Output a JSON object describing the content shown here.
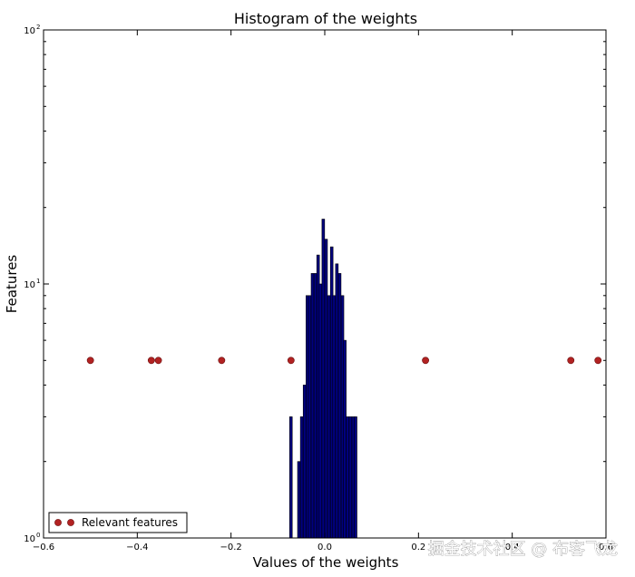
{
  "chart_data": {
    "type": "bar",
    "title": "Histogram of the weights",
    "xlabel": "Values of the weights",
    "ylabel": "Features",
    "xlim": [
      -0.6,
      0.6
    ],
    "ylim": [
      1,
      100
    ],
    "yscale": "log",
    "xticks": [
      -0.6,
      -0.4,
      -0.2,
      0.0,
      0.2,
      0.4,
      0.6
    ],
    "xtick_labels": [
      "−0.6",
      "−0.4",
      "−0.2",
      "0.0",
      "0.2",
      "0.4",
      "0.6"
    ],
    "yticks": [
      1,
      10,
      100
    ],
    "ytick_labels": [
      {
        "base": "10",
        "exp": "0"
      },
      {
        "base": "10",
        "exp": "1"
      },
      {
        "base": "10",
        "exp": "2"
      }
    ],
    "histogram": {
      "bin_width": 0.0057,
      "color": "#000080",
      "bins": [
        {
          "x": -0.075,
          "count": 3
        },
        {
          "x": -0.069,
          "count": 1
        },
        {
          "x": -0.063,
          "count": 1
        },
        {
          "x": -0.058,
          "count": 2
        },
        {
          "x": -0.052,
          "count": 3
        },
        {
          "x": -0.046,
          "count": 4
        },
        {
          "x": -0.04,
          "count": 9
        },
        {
          "x": -0.035,
          "count": 9
        },
        {
          "x": -0.029,
          "count": 11
        },
        {
          "x": -0.023,
          "count": 11
        },
        {
          "x": -0.017,
          "count": 13
        },
        {
          "x": -0.012,
          "count": 10
        },
        {
          "x": -0.006,
          "count": 18
        },
        {
          "x": 0.0,
          "count": 15
        },
        {
          "x": 0.006,
          "count": 9
        },
        {
          "x": 0.012,
          "count": 14
        },
        {
          "x": 0.017,
          "count": 9
        },
        {
          "x": 0.023,
          "count": 12
        },
        {
          "x": 0.029,
          "count": 11
        },
        {
          "x": 0.035,
          "count": 9
        },
        {
          "x": 0.04,
          "count": 6
        },
        {
          "x": 0.046,
          "count": 3
        },
        {
          "x": 0.052,
          "count": 3
        },
        {
          "x": 0.058,
          "count": 3
        },
        {
          "x": 0.063,
          "count": 3
        }
      ]
    },
    "series": [
      {
        "name": "Relevant features",
        "type": "scatter",
        "color": "#b22222",
        "x": [
          -0.5,
          -0.37,
          -0.355,
          -0.22,
          -0.072,
          0.215,
          0.525,
          0.583
        ],
        "y": [
          5,
          5,
          5,
          5,
          5,
          5,
          5,
          5
        ]
      }
    ],
    "legend": {
      "position": "lower-left",
      "entries": [
        "Relevant features"
      ]
    },
    "grid": false
  },
  "watermark": "掘金技术社区 @ 布客飞龙"
}
